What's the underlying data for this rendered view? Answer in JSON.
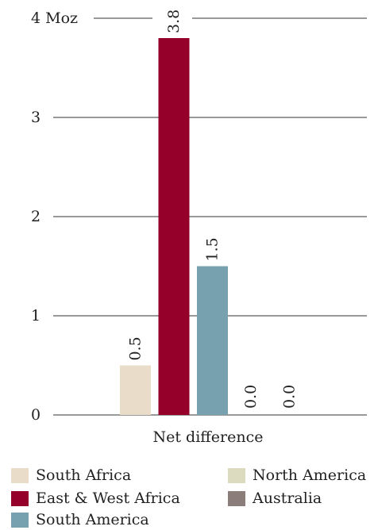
{
  "chart_data": {
    "type": "bar",
    "y_unit": "Moz",
    "ylim": [
      0,
      4
    ],
    "yticks": [
      0,
      1,
      2,
      3,
      4
    ],
    "categories": [
      "Net difference"
    ],
    "xlabel": "",
    "ylabel": "",
    "title": "",
    "grid": true,
    "legend_position": "bottom",
    "series": [
      {
        "name": "South Africa",
        "values": [
          0.5
        ],
        "label": "0.5",
        "color": "#e9dcc8"
      },
      {
        "name": "East & West Africa",
        "values": [
          3.8
        ],
        "label": "3.8",
        "color": "#94002a"
      },
      {
        "name": "South America",
        "values": [
          1.5
        ],
        "label": "1.5",
        "color": "#77a1ae"
      },
      {
        "name": "North America",
        "values": [
          0.0
        ],
        "label": "0.0",
        "color": "#dcdbc0"
      },
      {
        "name": "Australia",
        "values": [
          0.0
        ],
        "label": "0.0",
        "color": "#8b7d79"
      }
    ]
  }
}
